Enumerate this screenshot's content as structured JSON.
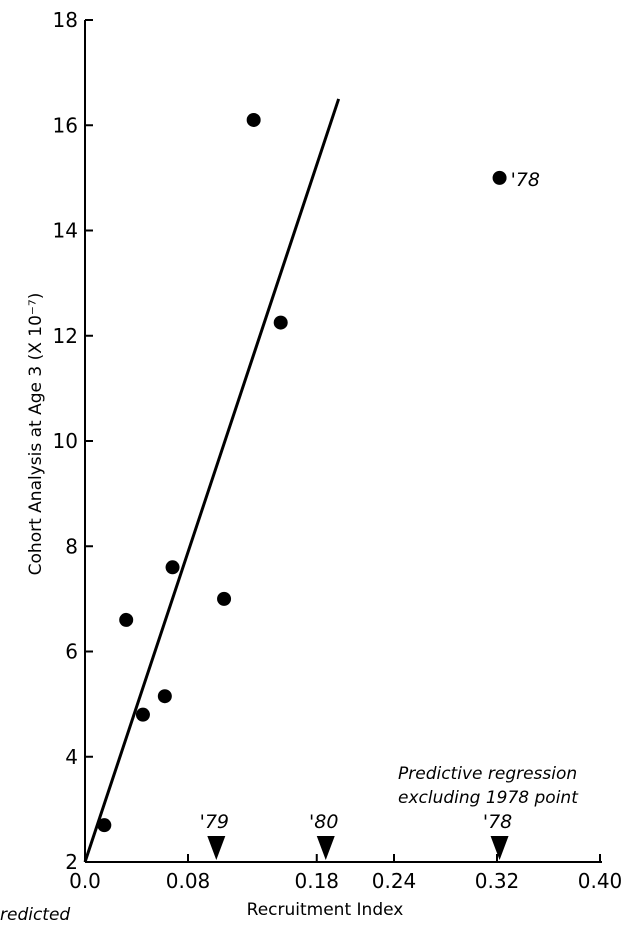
{
  "chart_data": {
    "type": "scatter",
    "title": "",
    "xlabel": "Recruitment Index",
    "ylabel": "Cohort Analysis at Age 3 (X 10⁻⁷)",
    "xlim": [
      0.0,
      0.4
    ],
    "ylim": [
      2,
      18
    ],
    "x_ticks": [
      0.0,
      0.08,
      0.18,
      0.24,
      0.32,
      0.4
    ],
    "x_tick_labels": [
      "0.0",
      "0.08",
      "0.18",
      "0.24",
      "0.32",
      "0.40"
    ],
    "y_ticks": [
      2,
      4,
      6,
      8,
      10,
      12,
      14,
      16,
      18
    ],
    "y_tick_labels": [
      "2",
      "4",
      "6",
      "8",
      "10",
      "12",
      "14",
      "16",
      "18"
    ],
    "grid": false,
    "points": [
      {
        "x": 0.015,
        "y": 2.7,
        "label": ""
      },
      {
        "x": 0.032,
        "y": 6.6,
        "label": ""
      },
      {
        "x": 0.045,
        "y": 4.8,
        "label": ""
      },
      {
        "x": 0.062,
        "y": 5.15,
        "label": ""
      },
      {
        "x": 0.068,
        "y": 7.6,
        "label": ""
      },
      {
        "x": 0.108,
        "y": 7.0,
        "label": ""
      },
      {
        "x": 0.131,
        "y": 16.1,
        "label": ""
      },
      {
        "x": 0.152,
        "y": 12.25,
        "label": ""
      },
      {
        "x": 0.322,
        "y": 15.0,
        "label": "'78"
      }
    ],
    "regression_line": {
      "x": [
        0.0,
        0.197
      ],
      "y": [
        2.0,
        16.5
      ]
    },
    "predicted_markers": [
      {
        "x": 0.102,
        "label": "'79"
      },
      {
        "x": 0.187,
        "label": "'80"
      },
      {
        "x": 0.322,
        "label": "'78"
      }
    ],
    "annotations": [
      {
        "text": "Predictive regression",
        "line": 1
      },
      {
        "text": "excluding 1978 point",
        "line": 2
      },
      {
        "text": "redicted",
        "line": 0
      }
    ]
  }
}
